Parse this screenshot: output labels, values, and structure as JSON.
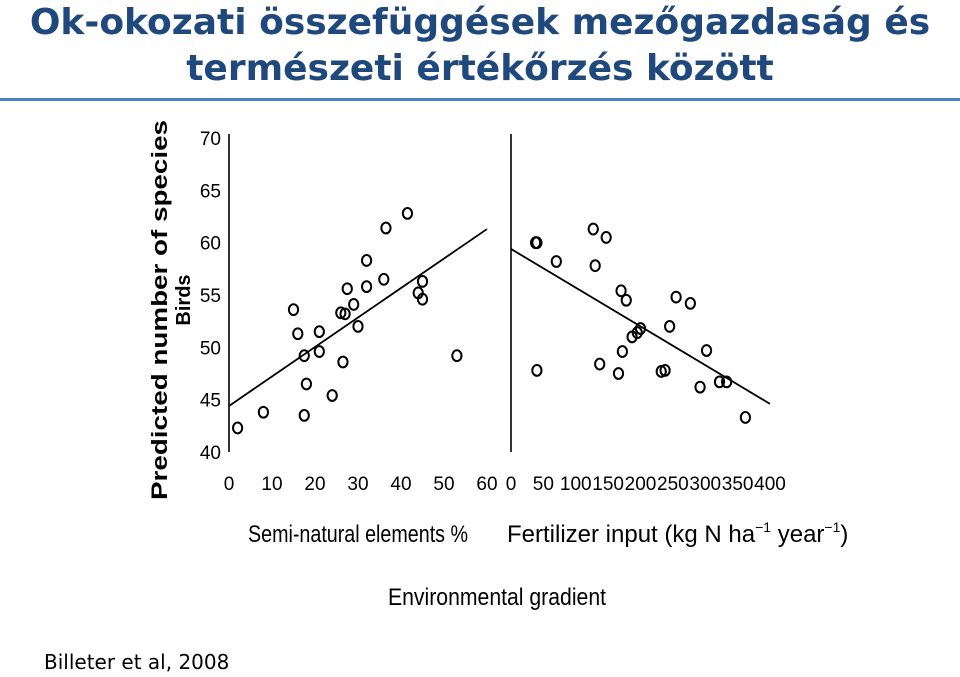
{
  "slide": {
    "title_line1": "Ok-okozati összefüggések mezőgazdaság és",
    "title_line2": "természeti értékőrzés között",
    "citation": "Billeter et al, 2008",
    "accent_color": "#1f497d",
    "rule_color": "#4f81bd"
  },
  "chart_data": {
    "type": "scatter",
    "ylabel": "Predicted number of species",
    "ylabel_sub": "Birds",
    "xlabel_shared": "Environmental gradient",
    "ylim": [
      40,
      70
    ],
    "yticks": [
      40,
      45,
      50,
      55,
      60,
      65,
      70
    ],
    "grid": false,
    "panels": [
      {
        "xlabel": "Semi-natural elements %",
        "xlim": [
          0,
          60
        ],
        "xticks": [
          0,
          10,
          20,
          30,
          40,
          50,
          60
        ],
        "points": [
          [
            2,
            42.3
          ],
          [
            8,
            43.8
          ],
          [
            15,
            53.6
          ],
          [
            16,
            51.3
          ],
          [
            17.5,
            49.2
          ],
          [
            17.5,
            43.5
          ],
          [
            18,
            46.5
          ],
          [
            21,
            51.5
          ],
          [
            21,
            49.6
          ],
          [
            24,
            45.4
          ],
          [
            26,
            53.3
          ],
          [
            26.5,
            48.6
          ],
          [
            27,
            53.2
          ],
          [
            27.5,
            55.6
          ],
          [
            29,
            54.1
          ],
          [
            30,
            52
          ],
          [
            32,
            55.8
          ],
          [
            32,
            58.3
          ],
          [
            36,
            56.5
          ],
          [
            36.5,
            61.4
          ],
          [
            41.5,
            62.8
          ],
          [
            44,
            55.2
          ],
          [
            45,
            56.3
          ],
          [
            45,
            54.6
          ],
          [
            53,
            49.2
          ]
        ],
        "fit_line": [
          [
            0,
            44.4
          ],
          [
            60,
            61.3
          ]
        ]
      },
      {
        "xlabel": "Fertilizer input (kg N ha",
        "xlabel_unit_ha": "ha",
        "xlabel_sup1": "−1",
        "xlabel_mid": " year",
        "xlabel_sup2": "−1",
        "xlabel_end": ")",
        "xlim": [
          0,
          400
        ],
        "xticks": [
          0,
          50,
          100,
          150,
          200,
          250,
          300,
          350,
          400
        ],
        "points": [
          [
            38,
            60
          ],
          [
            40,
            60
          ],
          [
            40,
            47.8
          ],
          [
            70,
            58.2
          ],
          [
            127,
            61.3
          ],
          [
            130,
            57.8
          ],
          [
            137,
            48.4
          ],
          [
            147,
            60.5
          ],
          [
            166,
            47.5
          ],
          [
            170,
            55.4
          ],
          [
            172,
            49.6
          ],
          [
            178,
            54.5
          ],
          [
            187,
            51
          ],
          [
            195,
            51.4
          ],
          [
            200,
            51.8
          ],
          [
            232,
            47.7
          ],
          [
            238,
            47.8
          ],
          [
            245,
            52
          ],
          [
            255,
            54.8
          ],
          [
            277,
            54.2
          ],
          [
            292,
            46.2
          ],
          [
            302,
            49.7
          ],
          [
            322,
            46.7
          ],
          [
            333,
            46.7
          ],
          [
            362,
            43.3
          ]
        ],
        "fit_line": [
          [
            0,
            59.4
          ],
          [
            400,
            44.6
          ]
        ]
      }
    ]
  }
}
